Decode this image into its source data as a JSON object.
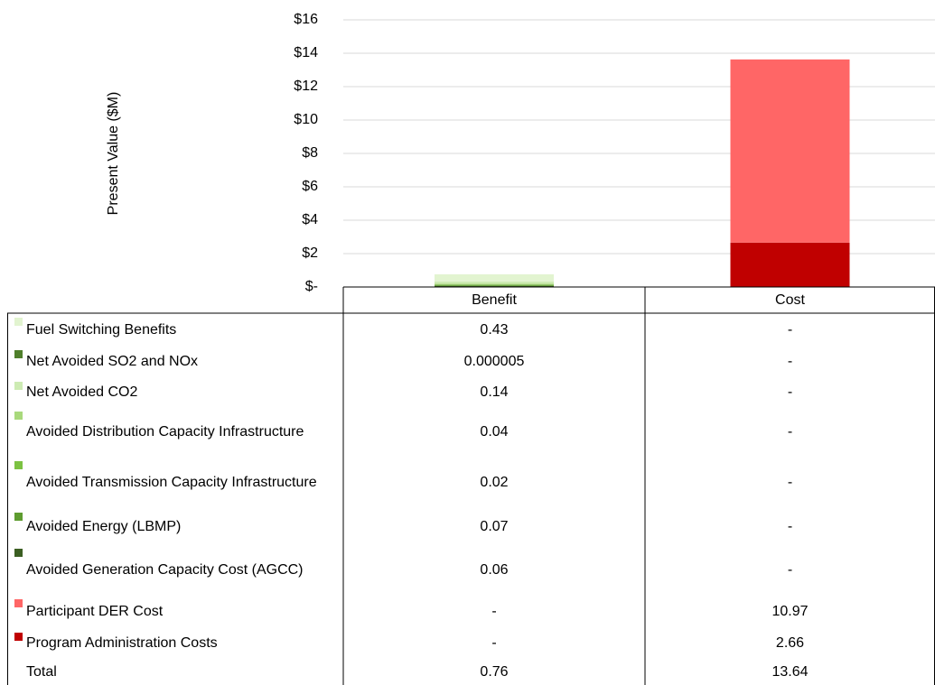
{
  "chart_data": {
    "type": "bar",
    "stacked": true,
    "y_axis_label": "Present Value ($M)",
    "categories": [
      "Benefit",
      "Cost"
    ],
    "ylim": [
      0,
      16
    ],
    "yticks": [
      {
        "value": 0,
        "label": "$-"
      },
      {
        "value": 2,
        "label": "$2"
      },
      {
        "value": 4,
        "label": "$4"
      },
      {
        "value": 6,
        "label": "$6"
      },
      {
        "value": 8,
        "label": "$8"
      },
      {
        "value": 10,
        "label": "$10"
      },
      {
        "value": 12,
        "label": "$12"
      },
      {
        "value": 14,
        "label": "$14"
      },
      {
        "value": 16,
        "label": "$16"
      }
    ],
    "grid": true,
    "series": [
      {
        "name": "Fuel Switching Benefits",
        "color": "#e2f4d0",
        "values": [
          0.43,
          0
        ],
        "value_labels": [
          "0.43",
          "-"
        ]
      },
      {
        "name": "Net Avoided SO2 and NOx",
        "color": "#4f7f2b",
        "values": [
          5e-06,
          0
        ],
        "value_labels": [
          "0.000005",
          "-"
        ]
      },
      {
        "name": "Net Avoided CO2",
        "color": "#cdebb3",
        "values": [
          0.14,
          0
        ],
        "value_labels": [
          "0.14",
          "-"
        ]
      },
      {
        "name": "Avoided Distribution Capacity Infrastructure",
        "color": "#a9d97c",
        "values": [
          0.04,
          0
        ],
        "value_labels": [
          "0.04",
          "-"
        ]
      },
      {
        "name": "Avoided Transmission Capacity Infrastructure",
        "color": "#7cc242",
        "values": [
          0.02,
          0
        ],
        "value_labels": [
          "0.02",
          "-"
        ]
      },
      {
        "name": "Avoided Energy (LBMP)",
        "color": "#5e9c30",
        "values": [
          0.07,
          0
        ],
        "value_labels": [
          "0.07",
          "-"
        ]
      },
      {
        "name": "Avoided Generation Capacity Cost (AGCC)",
        "color": "#3b5e22",
        "values": [
          0.06,
          0
        ],
        "value_labels": [
          "0.06",
          "-"
        ]
      },
      {
        "name": "Participant DER Cost",
        "color": "#ff6666",
        "values": [
          0,
          10.97
        ],
        "value_labels": [
          "-",
          "10.97"
        ]
      },
      {
        "name": "Program Administration Costs",
        "color": "#c00000",
        "values": [
          0,
          2.66
        ],
        "value_labels": [
          "-",
          "2.66"
        ]
      }
    ],
    "totals": {
      "name": "Total",
      "values": [
        0.76,
        13.64
      ]
    }
  }
}
